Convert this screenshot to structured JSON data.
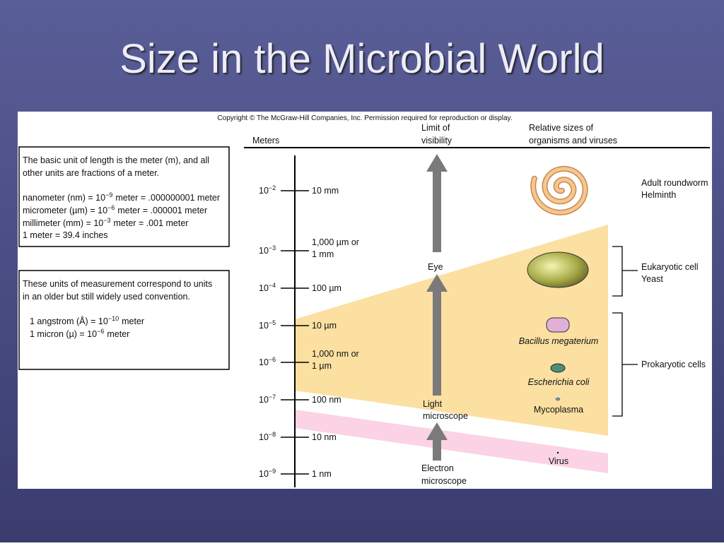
{
  "title": "Size in the Microbial World",
  "copyright": "Copyright © The McGraw-Hill Companies, Inc. Permission required for reproduction or display.",
  "headers": {
    "meters": "Meters",
    "visibility": [
      "Limit of",
      "visibility"
    ],
    "organisms": [
      "Relative sizes of",
      "organisms and viruses"
    ]
  },
  "box1": {
    "intro": [
      "The basic unit of length is the meter (m), and all",
      "other units are fractions of a meter."
    ],
    "units": [
      {
        "base": "nanometer (nm) = 10",
        "exp": "−9",
        "rest": "meter = .000000001 meter"
      },
      {
        "base": "micrometer (µm) = 10",
        "exp": "−6",
        "rest": "meter = .000001 meter"
      },
      {
        "base": "millimeter (mm) = 10",
        "exp": "−3",
        "rest": "meter = .001 meter"
      }
    ],
    "inches": "1 meter = 39.4 inches"
  },
  "box2": {
    "intro": [
      "These units of measurement correspond to units",
      "in an older but still widely used convention."
    ],
    "units": [
      {
        "base": "1 angstrom (Å) = 10",
        "exp": "−10",
        "rest": "meter"
      },
      {
        "base": "1 micron (µ) = 10",
        "exp": "−6",
        "rest": "meter"
      }
    ]
  },
  "scale": [
    {
      "base": "10",
      "exp": "−2",
      "label": [
        "10 mm"
      ]
    },
    {
      "base": "10",
      "exp": "−3",
      "label": [
        "1,000 µm or",
        "1 mm"
      ]
    },
    {
      "base": "10",
      "exp": "−4",
      "label": [
        "100 µm"
      ]
    },
    {
      "base": "10",
      "exp": "−5",
      "label": [
        "10 µm"
      ]
    },
    {
      "base": "10",
      "exp": "−6",
      "label": [
        "1,000 nm or",
        "1 µm"
      ]
    },
    {
      "base": "10",
      "exp": "−7",
      "label": [
        "100 nm"
      ]
    },
    {
      "base": "10",
      "exp": "−8",
      "label": [
        "10 nm"
      ]
    },
    {
      "base": "10",
      "exp": "−9",
      "label": [
        "1 nm"
      ]
    }
  ],
  "instruments": {
    "eye": "Eye",
    "light": [
      "Light",
      "microscope"
    ],
    "electron": [
      "Electron",
      "microscope"
    ]
  },
  "organisms": {
    "roundworm": [
      "Adult roundworm",
      "Helminth"
    ],
    "yeast": [
      "Eukaryotic cell",
      "Yeast"
    ],
    "bacillus": "Bacillus megaterium",
    "ecoli": "Escherichia coli",
    "mycoplasma": "Mycoplasma",
    "virus": "Virus",
    "prokaryotic": "Prokaryotic cells"
  }
}
